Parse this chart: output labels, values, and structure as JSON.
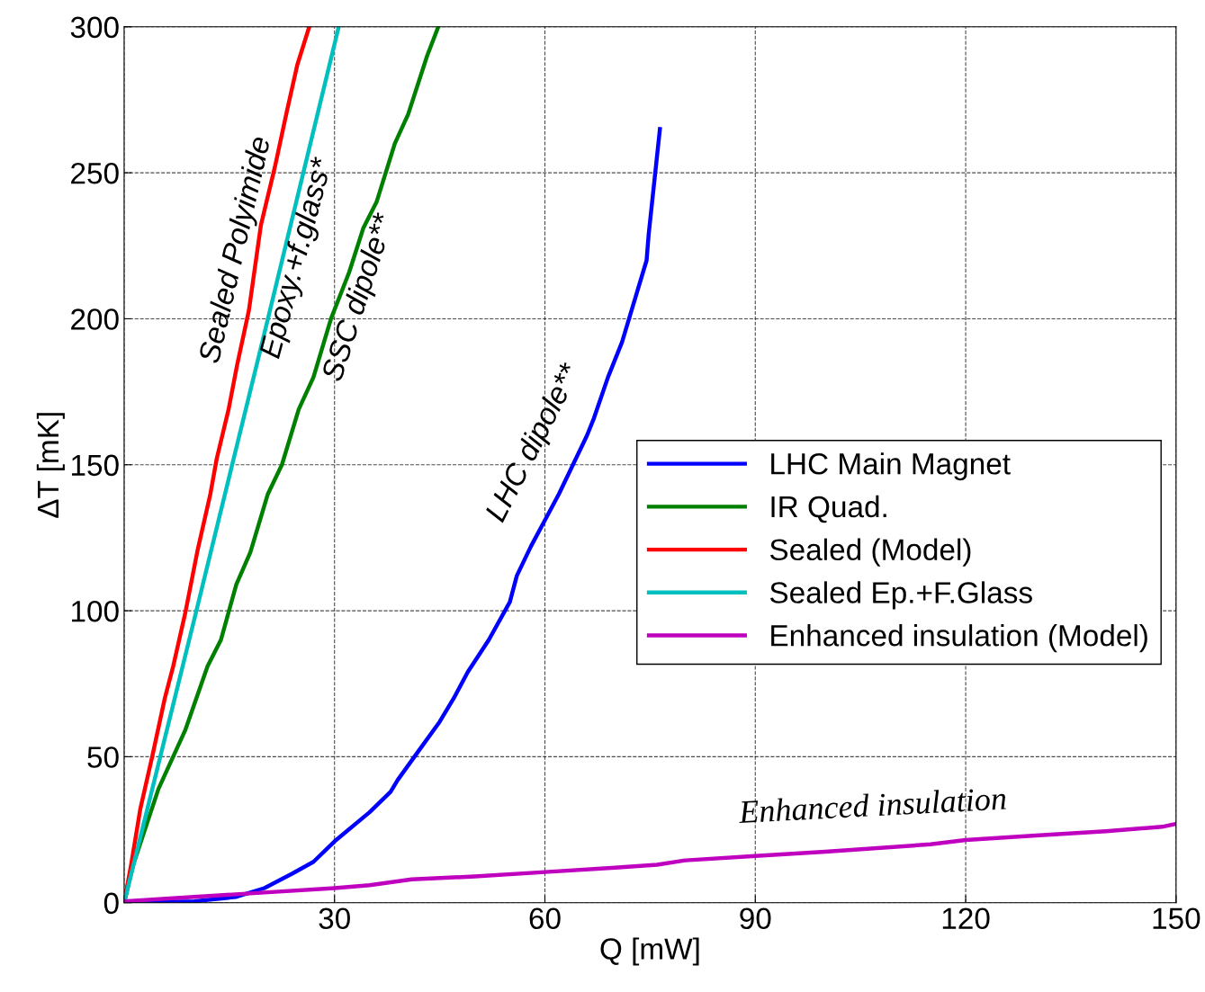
{
  "chart_data": {
    "type": "line",
    "xlabel": "Q [mW]",
    "ylabel": "ΔT [mK]",
    "xlim": [
      0,
      150
    ],
    "ylim": [
      0,
      300
    ],
    "xticks": [
      {
        "value": 0,
        "label": null
      },
      30,
      60,
      90,
      120,
      150
    ],
    "yticks": [
      0,
      50,
      100,
      150,
      200,
      250,
      300
    ],
    "grid": true,
    "legend": "center right",
    "series": [
      {
        "name": "LHC Main Magnet",
        "color": "#0000ff",
        "x": [
          0,
          10,
          16,
          20,
          24,
          27,
          30,
          35,
          38,
          39,
          42,
          45,
          47,
          49,
          52,
          55,
          56,
          58,
          60,
          62,
          64,
          66,
          67,
          69,
          71,
          73,
          74.5,
          74.8,
          76.4
        ],
        "values": [
          0,
          0.5,
          2,
          5,
          10,
          14,
          21,
          31,
          38,
          42,
          52,
          62,
          70,
          79,
          90,
          103,
          112,
          122,
          131,
          140,
          150,
          160,
          166,
          180,
          192,
          208,
          220,
          229,
          265
        ]
      },
      {
        "name": "IR Quad.",
        "color": "#008000",
        "x": [
          0,
          1.3,
          4.9,
          8.7,
          11.9,
          13.8,
          16,
          18,
          20.5,
          22.5,
          24.9,
          27,
          29.5,
          32.1,
          34.1,
          36,
          38.6,
          40.5,
          43.2,
          44.8
        ],
        "values": [
          0,
          13,
          39,
          59,
          81,
          90,
          109,
          120,
          140,
          150,
          169,
          180,
          200,
          216,
          231,
          240,
          260,
          270,
          290,
          300
        ]
      },
      {
        "name": "Sealed (Model)",
        "color": "#ff0000",
        "x": [
          0,
          1,
          2.3,
          4,
          5.8,
          7,
          8.7,
          10.5,
          12.3,
          13.2,
          14.2,
          14.9,
          16.1,
          17.8,
          19.5,
          21.5,
          23.2,
          24.7,
          26.4
        ],
        "values": [
          0,
          13,
          32,
          50,
          70,
          81,
          99,
          121,
          140,
          152,
          162,
          169,
          184,
          203,
          232,
          252,
          271,
          287,
          300
        ]
      },
      {
        "name": "Sealed Ep.+F.Glass",
        "color": "#00bfbf",
        "x": [
          0,
          10,
          20,
          30.6
        ],
        "values": [
          0,
          97,
          195,
          300
        ]
      },
      {
        "name": "Enhanced insulation (Model)",
        "color": "#bf00bf",
        "x": [
          0,
          10,
          20,
          30,
          35,
          41,
          50,
          60,
          70,
          76,
          80,
          90,
          100,
          115,
          120,
          130,
          140,
          148,
          150
        ],
        "values": [
          0.5,
          2,
          3.5,
          5,
          6,
          8,
          9,
          10.5,
          12,
          13,
          14.5,
          16,
          17.5,
          20,
          21.5,
          23,
          24.5,
          26,
          27
        ]
      }
    ],
    "annotations": [
      "Sealed Polyimide",
      "Epoxy.+f.glass*",
      "SSC dipole**",
      "LHC dipole**",
      "Enhanced insulation"
    ]
  }
}
